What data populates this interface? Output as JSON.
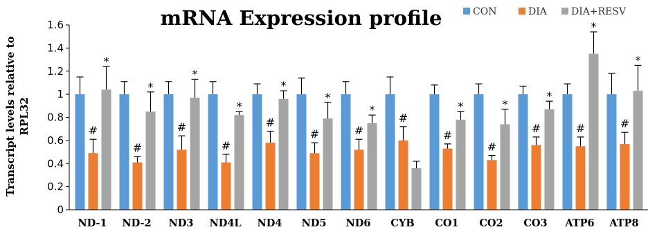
{
  "chart_data": {
    "type": "bar",
    "title": "mRNA Expression profile",
    "ylabel": "Transcript levels relative to RPL32",
    "xlabel": "",
    "ylim": [
      0,
      1.6
    ],
    "yticks": [
      "0",
      "0.2",
      "0.4",
      "0.6",
      "0.8",
      "1",
      "1.2",
      "1.4",
      "1.6"
    ],
    "grid": false,
    "legend_position": "top-right",
    "categories": [
      "ND-1",
      "ND-2",
      "ND3",
      "ND4L",
      "ND4",
      "ND5",
      "ND6",
      "CYB",
      "CO1",
      "CO2",
      "CO3",
      "ATP6",
      "ATP8"
    ],
    "series": [
      {
        "name": "CON",
        "color": "#5B9BD5",
        "values": [
          1.0,
          1.0,
          1.0,
          1.0,
          1.0,
          1.0,
          1.0,
          1.0,
          1.0,
          1.0,
          1.0,
          1.0,
          1.0
        ],
        "error": [
          0.15,
          0.11,
          0.11,
          0.11,
          0.09,
          0.14,
          0.11,
          0.15,
          0.08,
          0.09,
          0.07,
          0.09,
          0.18
        ],
        "marks": [
          "",
          "",
          "",
          "",
          "",
          "",
          "",
          "",
          "",
          "",
          "",
          "",
          ""
        ]
      },
      {
        "name": "DIA",
        "color": "#ED7D31",
        "values": [
          0.49,
          0.41,
          0.52,
          0.41,
          0.58,
          0.49,
          0.52,
          0.6,
          0.53,
          0.43,
          0.56,
          0.55,
          0.57
        ],
        "error": [
          0.12,
          0.05,
          0.12,
          0.07,
          0.1,
          0.09,
          0.09,
          0.12,
          0.04,
          0.04,
          0.07,
          0.08,
          0.1
        ],
        "marks": [
          "#",
          "#",
          "#",
          "#",
          "#",
          "#",
          "#",
          "#",
          "#",
          "#",
          "#",
          "#",
          "#"
        ]
      },
      {
        "name": "DIA+RESV",
        "color": "#A5A5A5",
        "values": [
          1.04,
          0.85,
          0.97,
          0.82,
          0.96,
          0.79,
          0.75,
          0.36,
          0.78,
          0.74,
          0.87,
          1.35,
          1.03
        ],
        "error": [
          0.2,
          0.17,
          0.16,
          0.03,
          0.07,
          0.14,
          0.07,
          0.06,
          0.07,
          0.13,
          0.07,
          0.19,
          0.22
        ],
        "marks": [
          "*",
          "*",
          "*",
          "*",
          "*",
          "*",
          "*",
          "",
          "*",
          "*",
          "*",
          "*",
          "*"
        ]
      }
    ]
  }
}
